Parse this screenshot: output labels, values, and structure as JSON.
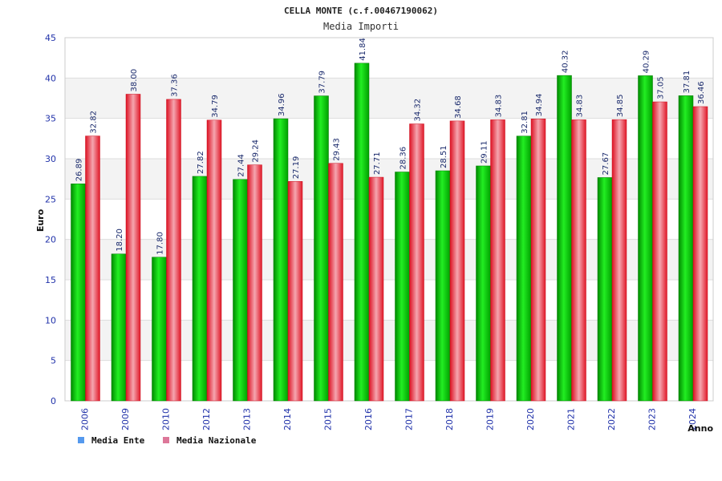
{
  "chart_data": {
    "type": "bar",
    "title": "CELLA MONTE (c.f.00467190062)",
    "subtitle": "Media Importi",
    "ylabel": "Euro",
    "xlabel": "Anno",
    "ylim": [
      0,
      45
    ],
    "yticks": [
      0,
      5,
      10,
      15,
      20,
      25,
      30,
      35,
      40,
      45
    ],
    "grid": true,
    "legend_position": "bottom-left",
    "categories": [
      "2006",
      "2009",
      "2010",
      "2012",
      "2013",
      "2014",
      "2015",
      "2016",
      "2017",
      "2018",
      "2019",
      "2020",
      "2021",
      "2022",
      "2023",
      "2024"
    ],
    "series": [
      {
        "name": "Media Ente",
        "legend_color": "#5599ee",
        "bar_color": "#00bb00",
        "values": [
          26.89,
          18.2,
          17.8,
          27.82,
          27.44,
          34.96,
          37.79,
          41.84,
          28.36,
          28.51,
          29.11,
          32.81,
          40.32,
          27.67,
          40.29,
          37.81
        ],
        "labels": [
          "26.89",
          "18.20",
          "17.80",
          "27.82",
          "27.44",
          "34.96",
          "37.79",
          "41.84",
          "28.36",
          "28.51",
          "29.11",
          "32.81",
          "40.32",
          "27.67",
          "40.29",
          "37.81"
        ]
      },
      {
        "name": "Media Nazionale",
        "legend_color": "#dd7799",
        "bar_color": "#ee2233",
        "values": [
          32.82,
          38.0,
          37.36,
          34.79,
          29.24,
          27.19,
          29.43,
          27.71,
          34.32,
          34.68,
          34.83,
          34.94,
          34.83,
          34.85,
          37.05,
          36.46
        ],
        "labels": [
          "32.82",
          "38.00",
          "37.36",
          "34.79",
          "29.24",
          "27.19",
          "29.43",
          "27.71",
          "34.32",
          "34.68",
          "34.83",
          "34.94",
          "34.83",
          "34.85",
          "37.05",
          "36.46"
        ]
      }
    ]
  }
}
